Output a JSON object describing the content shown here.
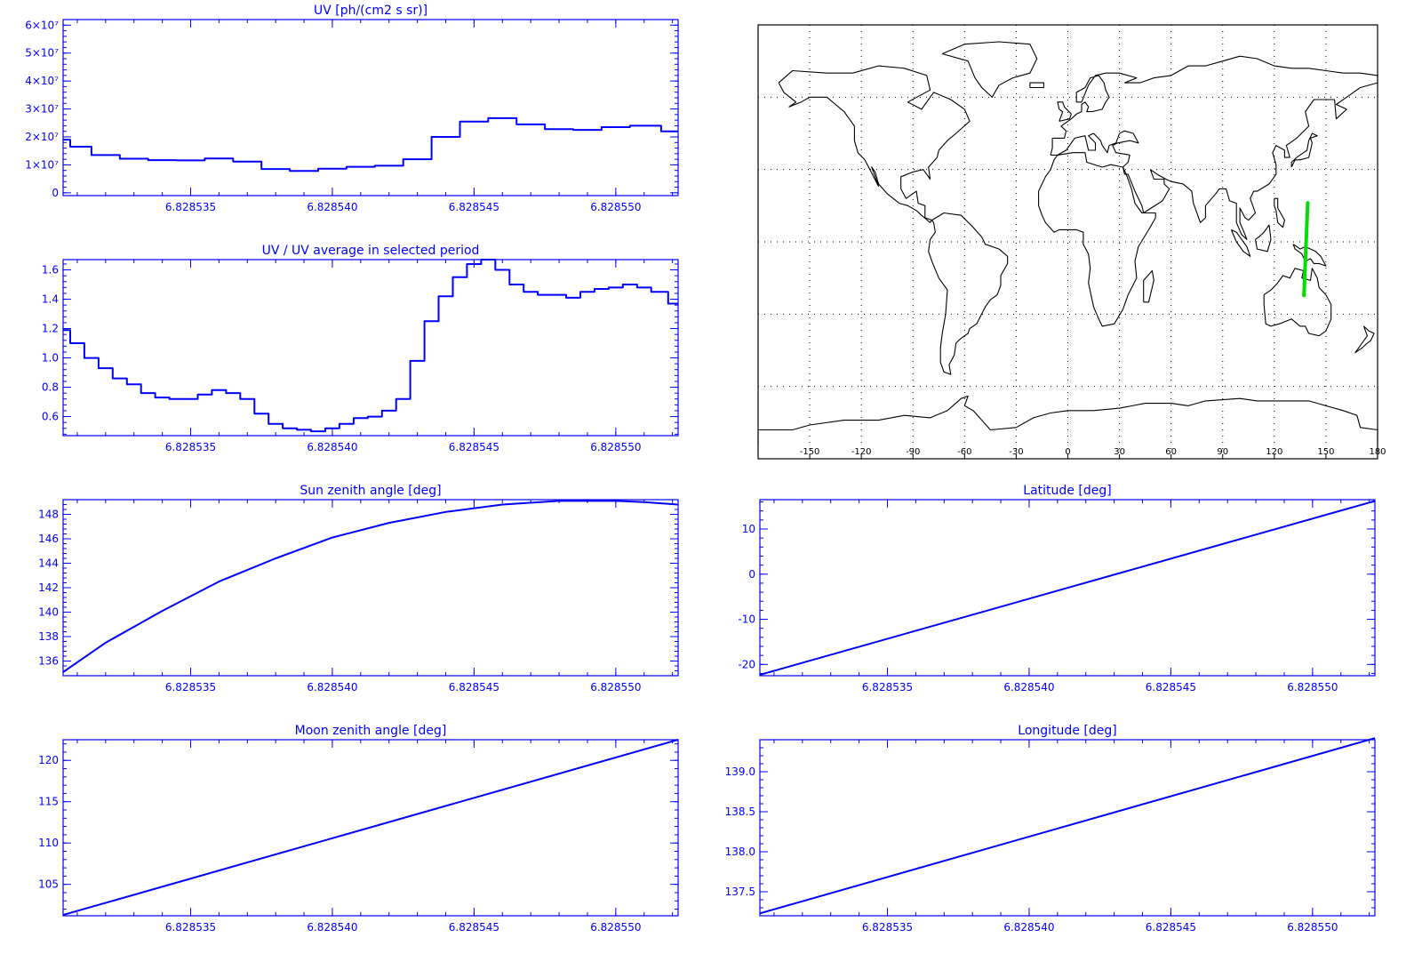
{
  "colors": {
    "plot": "#0000ff",
    "track": "#00e000",
    "map_line": "#000000",
    "grid": "#000000"
  },
  "chart_data": [
    {
      "id": "uv",
      "type": "line",
      "title": "UV [ph/(cm2 s sr)]",
      "xlim": [
        6.8285305,
        6.8285522
      ],
      "xticks": [
        "6.828535",
        "6.828540",
        "6.828545",
        "6.828550"
      ],
      "xtick_values": [
        6.828535,
        6.82854,
        6.828545,
        6.82855
      ],
      "ylim": [
        -1000000,
        62000000
      ],
      "yticks": [
        0,
        10000000,
        20000000,
        30000000,
        40000000,
        50000000,
        60000000
      ],
      "ytick_labels": [
        "0",
        "1×10⁷",
        "2×10⁷",
        "3×10⁷",
        "4×10⁷",
        "5×10⁷",
        "6×10⁷"
      ],
      "series": [
        {
          "x": [
            6.8285305,
            6.828531,
            6.828532,
            6.828533,
            6.828534,
            6.828535,
            6.828536,
            6.828537,
            6.828538,
            6.828539,
            6.82854,
            6.828541,
            6.828542,
            6.828543,
            6.828544,
            6.828545,
            6.828546,
            6.828547,
            6.828548,
            6.828549,
            6.82855,
            6.828551,
            6.8285522
          ],
          "y": [
            19000000,
            16500000,
            13500000,
            12200000,
            11700000,
            11600000,
            12300000,
            11200000,
            8500000,
            7800000,
            8600000,
            9300000,
            9700000,
            12000000,
            20000000,
            25500000,
            26700000,
            24500000,
            22800000,
            22500000,
            23500000,
            24000000,
            22000000
          ]
        }
      ]
    },
    {
      "id": "ratio",
      "type": "line",
      "title": "UV / UV average in selected period",
      "xlim": [
        6.8285305,
        6.8285522
      ],
      "xticks": [
        "6.828535",
        "6.828540",
        "6.828545",
        "6.828550"
      ],
      "xtick_values": [
        6.828535,
        6.82854,
        6.828545,
        6.82855
      ],
      "ylim": [
        0.47,
        1.67
      ],
      "yticks": [
        0.6,
        0.8,
        1.0,
        1.2,
        1.4,
        1.6
      ],
      "ytick_labels": [
        "0.6",
        "0.8",
        "1.0",
        "1.2",
        "1.4",
        "1.6"
      ],
      "series": [
        {
          "x": [
            6.8285305,
            6.828531,
            6.8285315,
            6.828532,
            6.8285325,
            6.828533,
            6.8285335,
            6.828534,
            6.8285345,
            6.828535,
            6.8285355,
            6.828536,
            6.8285365,
            6.828537,
            6.8285375,
            6.828538,
            6.8285385,
            6.828539,
            6.8285395,
            6.82854,
            6.8285405,
            6.828541,
            6.8285415,
            6.828542,
            6.8285425,
            6.828543,
            6.8285435,
            6.828544,
            6.8285445,
            6.828545,
            6.8285455,
            6.828546,
            6.8285465,
            6.828547,
            6.8285475,
            6.828548,
            6.8285485,
            6.828549,
            6.8285495,
            6.82855,
            6.8285505,
            6.828551,
            6.8285515,
            6.8285522
          ],
          "y": [
            1.19,
            1.1,
            1.0,
            0.93,
            0.86,
            0.82,
            0.76,
            0.73,
            0.72,
            0.72,
            0.75,
            0.78,
            0.76,
            0.72,
            0.62,
            0.55,
            0.52,
            0.51,
            0.5,
            0.52,
            0.55,
            0.59,
            0.6,
            0.64,
            0.72,
            0.98,
            1.25,
            1.42,
            1.55,
            1.64,
            1.67,
            1.6,
            1.5,
            1.45,
            1.43,
            1.43,
            1.41,
            1.45,
            1.47,
            1.48,
            1.5,
            1.48,
            1.45,
            1.37
          ]
        }
      ]
    },
    {
      "id": "sza",
      "type": "line",
      "title": "Sun zenith angle [deg]",
      "xlim": [
        6.8285305,
        6.8285522
      ],
      "xticks": [
        "6.828535",
        "6.828540",
        "6.828545",
        "6.828550"
      ],
      "xtick_values": [
        6.828535,
        6.82854,
        6.828545,
        6.82855
      ],
      "ylim": [
        134.8,
        149.2
      ],
      "yticks": [
        136,
        138,
        140,
        142,
        144,
        146,
        148
      ],
      "ytick_labels": [
        "136",
        "138",
        "140",
        "142",
        "144",
        "146",
        "148"
      ],
      "series": [
        {
          "x": [
            6.8285305,
            6.828532,
            6.828534,
            6.828536,
            6.828538,
            6.82854,
            6.828542,
            6.828544,
            6.828546,
            6.828548,
            6.828549,
            6.82855,
            6.828551,
            6.8285522
          ],
          "y": [
            135.1,
            137.5,
            140.1,
            142.5,
            144.4,
            146.1,
            147.3,
            148.2,
            148.8,
            149.1,
            149.1,
            149.1,
            149.0,
            148.8
          ]
        }
      ]
    },
    {
      "id": "lat",
      "type": "line",
      "title": "Latitude [deg]",
      "xlim": [
        6.8285305,
        6.8285522
      ],
      "xticks": [
        "6.828535",
        "6.828540",
        "6.828545",
        "6.828550"
      ],
      "xtick_values": [
        6.828535,
        6.82854,
        6.828545,
        6.82855
      ],
      "ylim": [
        -22.5,
        16.5
      ],
      "yticks": [
        -20,
        -10,
        0,
        10
      ],
      "ytick_labels": [
        "-20",
        "-10",
        "0",
        "10"
      ],
      "series": [
        {
          "x": [
            6.8285305,
            6.8285522
          ],
          "y": [
            -22.3,
            16.2
          ]
        }
      ]
    },
    {
      "id": "mza",
      "type": "line",
      "title": "Moon zenith angle [deg]",
      "xlim": [
        6.8285305,
        6.8285522
      ],
      "xticks": [
        "6.828535",
        "6.828540",
        "6.828545",
        "6.828550"
      ],
      "xtick_values": [
        6.828535,
        6.82854,
        6.828545,
        6.82855
      ],
      "ylim": [
        101.2,
        122.5
      ],
      "yticks": [
        105,
        110,
        115,
        120
      ],
      "ytick_labels": [
        "105",
        "110",
        "115",
        "120"
      ],
      "series": [
        {
          "x": [
            6.8285305,
            6.8285522
          ],
          "y": [
            101.3,
            122.5
          ]
        }
      ]
    },
    {
      "id": "lon",
      "type": "line",
      "title": "Longitude [deg]",
      "xlim": [
        6.8285305,
        6.8285522
      ],
      "xticks": [
        "6.828535",
        "6.828540",
        "6.828545",
        "6.828550"
      ],
      "xtick_values": [
        6.828535,
        6.82854,
        6.828545,
        6.82855
      ],
      "ylim": [
        137.2,
        139.4
      ],
      "yticks": [
        137.5,
        138.0,
        138.5,
        139.0
      ],
      "ytick_labels": [
        "137.5",
        "138.0",
        "138.5",
        "139.0"
      ],
      "series": [
        {
          "x": [
            6.8285305,
            6.8285522
          ],
          "y": [
            137.23,
            139.42
          ]
        }
      ]
    },
    {
      "id": "map",
      "type": "map",
      "lon_range": [
        -180,
        180
      ],
      "lat_range": [
        -90,
        90
      ],
      "lon_ticks": [
        -150,
        -120,
        -90,
        -60,
        -30,
        0,
        30,
        60,
        90,
        120,
        150,
        180
      ],
      "lon_tick_labels": [
        "-150",
        "-120",
        "-90",
        "-60",
        "-30",
        "0",
        "30",
        "60",
        "90",
        "120",
        "150",
        "180"
      ],
      "lat_grid": [
        -60,
        -30,
        0,
        30,
        60
      ],
      "track": {
        "lon": [
          137.23,
          139.42
        ],
        "lat": [
          -22.3,
          16.2
        ]
      }
    }
  ]
}
